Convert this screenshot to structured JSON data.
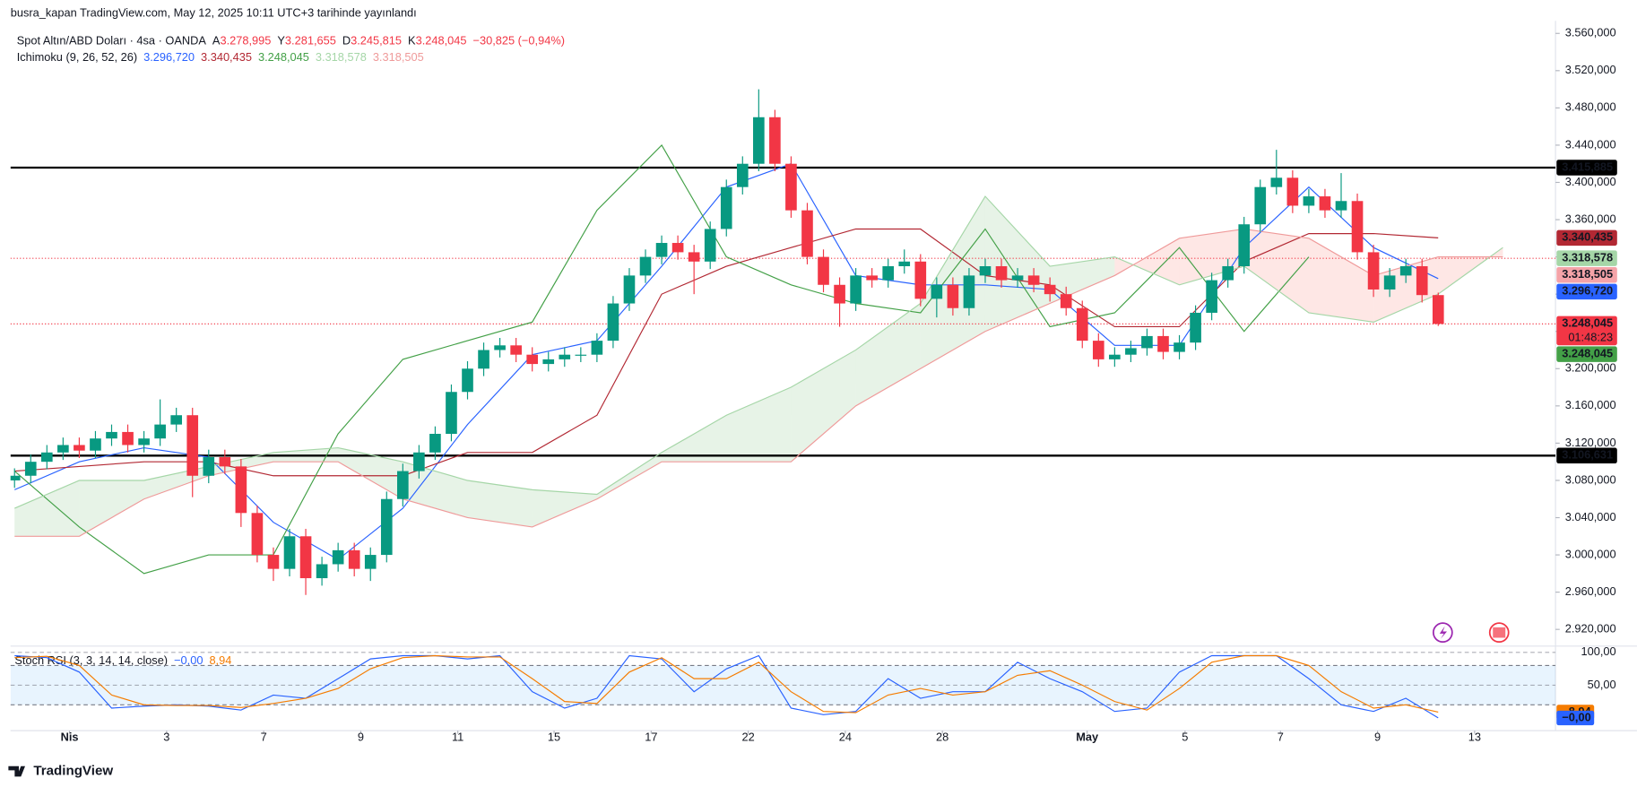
{
  "header": {
    "publisher": "busra_kapan TradingView.com, May 12, 2025 10:11 UTC+3 tarihinde yayınlandı",
    "footer": "TradingView"
  },
  "chart_data": {
    "type": "candlestick",
    "symbol": "Spot Altın/ABD Doları · 4sa · OANDA",
    "ohlc_legend": [
      {
        "key": "A",
        "value": "3.278,995"
      },
      {
        "key": "Y",
        "value": "3.281,655"
      },
      {
        "key": "D",
        "value": "3.245,815"
      },
      {
        "key": "K",
        "value": "3.248,045"
      }
    ],
    "change": "−30,825 (−0,94%)",
    "up_color": "#089981",
    "down_color": "#f23645",
    "x": [
      0,
      2,
      4,
      6,
      8,
      10,
      12,
      14,
      16,
      18,
      20,
      22,
      24,
      26,
      28,
      30,
      32,
      34,
      36,
      38,
      40,
      42,
      44,
      46,
      48,
      50,
      52,
      54,
      56,
      58,
      60,
      62,
      64,
      66,
      68,
      70,
      72,
      74,
      76,
      78,
      80,
      82,
      84,
      86,
      88,
      90,
      92,
      94,
      96,
      98,
      100,
      102,
      104,
      106,
      108,
      110,
      112,
      114,
      116,
      118,
      120,
      122,
      124,
      126,
      128,
      130,
      132,
      134,
      136,
      138,
      140,
      142,
      144,
      146,
      148,
      150,
      152,
      154,
      156,
      158,
      160,
      162,
      164,
      166,
      168,
      170,
      172,
      174,
      176
    ],
    "open": [
      3080,
      3085,
      3100,
      3110,
      3118,
      3112,
      3125,
      3132,
      3118,
      3125,
      3140,
      3150,
      3085,
      3105,
      3095,
      3045,
      3000,
      2985,
      3020,
      2975,
      2990,
      3005,
      2985,
      3000,
      3060,
      3090,
      3110,
      3130,
      3175,
      3200,
      3220,
      3225,
      3215,
      3205,
      3210,
      3215,
      3215,
      3230,
      3270,
      3300,
      3320,
      3335,
      3325,
      3315,
      3350,
      3395,
      3420,
      3470,
      3420,
      3370,
      3320,
      3290,
      3270,
      3300,
      3295,
      3310,
      3315,
      3275,
      3290,
      3265,
      3300,
      3310,
      3295,
      3300,
      3290,
      3280,
      3265,
      3230,
      3210,
      3215,
      3222,
      3235,
      3218,
      3228,
      3260,
      3295,
      3310,
      3355,
      3395,
      3405,
      3375,
      3385,
      3370,
      3380,
      3325,
      3285,
      3300,
      3310,
      3278.995
    ],
    "high": [
      3093,
      3108,
      3118,
      3126,
      3126,
      3133,
      3140,
      3140,
      3133,
      3167,
      3158,
      3158,
      3113,
      3113,
      3103,
      3053,
      3008,
      3028,
      3028,
      2998,
      3013,
      3013,
      3008,
      3068,
      3098,
      3118,
      3138,
      3183,
      3208,
      3228,
      3233,
      3233,
      3223,
      3218,
      3223,
      3223,
      3238,
      3278,
      3308,
      3328,
      3343,
      3343,
      3333,
      3358,
      3403,
      3428,
      3500,
      3478,
      3428,
      3378,
      3328,
      3298,
      3308,
      3308,
      3318,
      3328,
      3323,
      3298,
      3298,
      3308,
      3318,
      3318,
      3308,
      3308,
      3298,
      3288,
      3273,
      3238,
      3223,
      3230,
      3243,
      3243,
      3236,
      3268,
      3303,
      3318,
      3363,
      3403,
      3435,
      3413,
      3393,
      3393,
      3410,
      3388,
      3333,
      3308,
      3318,
      3318,
      3281.655
    ],
    "low": [
      3072,
      3077,
      3092,
      3102,
      3104,
      3104,
      3117,
      3110,
      3110,
      3117,
      3132,
      3062,
      3077,
      3087,
      3030,
      2992,
      2972,
      2977,
      2957,
      2967,
      2982,
      2977,
      2972,
      2992,
      3052,
      3082,
      3102,
      3122,
      3167,
      3192,
      3212,
      3207,
      3197,
      3197,
      3202,
      3207,
      3207,
      3222,
      3262,
      3292,
      3312,
      3317,
      3280,
      3307,
      3342,
      3387,
      3412,
      3412,
      3362,
      3312,
      3282,
      3245,
      3262,
      3287,
      3287,
      3302,
      3267,
      3255,
      3257,
      3257,
      3292,
      3287,
      3287,
      3282,
      3272,
      3257,
      3222,
      3202,
      3202,
      3207,
      3214,
      3210,
      3210,
      3220,
      3252,
      3287,
      3302,
      3347,
      3387,
      3367,
      3367,
      3362,
      3362,
      3317,
      3277,
      3277,
      3292,
      3271,
      3245.815
    ],
    "close": [
      3085,
      3100,
      3110,
      3118,
      3112,
      3125,
      3132,
      3118,
      3125,
      3140,
      3150,
      3085,
      3105,
      3095,
      3045,
      3000,
      2985,
      3020,
      2975,
      2990,
      3005,
      2985,
      3000,
      3060,
      3090,
      3110,
      3130,
      3175,
      3200,
      3220,
      3225,
      3215,
      3205,
      3210,
      3215,
      3215,
      3230,
      3270,
      3300,
      3320,
      3335,
      3325,
      3315,
      3350,
      3395,
      3420,
      3470,
      3420,
      3370,
      3320,
      3290,
      3270,
      3300,
      3295,
      3310,
      3315,
      3275,
      3290,
      3265,
      3300,
      3310,
      3295,
      3300,
      3290,
      3280,
      3265,
      3230,
      3210,
      3215,
      3222,
      3235,
      3218,
      3228,
      3260,
      3295,
      3310,
      3355,
      3395,
      3405,
      3375,
      3385,
      3370,
      3380,
      3325,
      3285,
      3300,
      3310,
      3279,
      3248.045
    ],
    "xlim": [
      -0.5,
      190.5
    ],
    "xticks": [
      {
        "value": 6.8,
        "label": "Nis"
      },
      {
        "value": 18.8,
        "label": "3"
      },
      {
        "value": 30.8,
        "label": "7"
      },
      {
        "value": 42.8,
        "label": "9"
      },
      {
        "value": 54.8,
        "label": "11"
      },
      {
        "value": 66.7,
        "label": "15"
      },
      {
        "value": 78.7,
        "label": "17"
      },
      {
        "value": 90.7,
        "label": "22"
      },
      {
        "value": 102.7,
        "label": "24"
      },
      {
        "value": 114.7,
        "label": "28"
      },
      {
        "value": 132.6,
        "label": "May"
      },
      {
        "value": 144.7,
        "label": "5"
      },
      {
        "value": 156.5,
        "label": "7"
      },
      {
        "value": 168.5,
        "label": "9"
      },
      {
        "value": 180.5,
        "label": "13"
      }
    ],
    "ylim": [
      2903.2,
      3573.45
    ],
    "grid": false,
    "yticks": [
      {
        "value": 3560,
        "label": "3.560,000"
      },
      {
        "value": 3520,
        "label": "3.520,000"
      },
      {
        "value": 3480,
        "label": "3.480,000"
      },
      {
        "value": 3440,
        "label": "3.440,000"
      },
      {
        "value": 3400,
        "label": "3.400,000"
      },
      {
        "value": 3360,
        "label": "3.360,000"
      },
      {
        "value": 3320,
        "label": "3.320,000"
      },
      {
        "value": 3280,
        "label": "3.280,000"
      },
      {
        "value": 3240,
        "label": "3.240,000"
      },
      {
        "value": 3200,
        "label": "3.200,000"
      },
      {
        "value": 3160,
        "label": "3.160,000"
      },
      {
        "value": 3120,
        "label": "3.120,000"
      },
      {
        "value": 3080,
        "label": "3.080,000"
      },
      {
        "value": 3040,
        "label": "3.040,000"
      },
      {
        "value": 3000,
        "label": "3.000,000"
      },
      {
        "value": 2960,
        "label": "2.960,000"
      },
      {
        "value": 2920,
        "label": "2.920,000"
      }
    ],
    "hlines": [
      {
        "value": 3415.885,
        "color": "#000000",
        "style": "solid"
      },
      {
        "value": 3106.631,
        "color": "#000000",
        "style": "solid"
      },
      {
        "value": 3318.505,
        "color": "#f23645",
        "style": "dotted"
      },
      {
        "value": 3248.045,
        "color": "#f23645",
        "style": "dotted"
      }
    ],
    "ichimoku": {
      "title": "Ichimoku (9, 26, 52, 26)",
      "x": [
        0,
        8,
        16,
        24,
        32,
        40,
        48,
        56,
        64,
        72,
        80,
        88,
        96,
        104,
        112,
        120,
        128,
        136,
        144,
        152,
        160,
        168,
        176,
        184
      ],
      "cloud_up_color": "rgba(67,160,71,0.13)",
      "cloud_down_color": "rgba(244,67,54,0.13)",
      "series": [
        {
          "role": "tenkan",
          "legend_value": "3.296,720",
          "color": "#2962ff",
          "values": [
            3070,
            3100,
            3115,
            3105,
            3035,
            2995,
            3050,
            3140,
            3215,
            3230,
            3310,
            3395,
            3420,
            3300,
            3290,
            3290,
            3285,
            3225,
            3225,
            3330,
            3395,
            3330,
            3296.72,
            null
          ]
        },
        {
          "role": "kijun",
          "legend_value": "3.340,435",
          "color": "#b22833",
          "values": [
            3090,
            3095,
            3100,
            3100,
            3085,
            3085,
            3085,
            3110,
            3110,
            3150,
            3280,
            3310,
            3330,
            3350,
            3350,
            3300,
            3290,
            3245,
            3245,
            3315,
            3345,
            3345,
            3340.435,
            null
          ]
        },
        {
          "role": "chikou",
          "legend_value": "3.248,045",
          "color": "#43a047",
          "values": [
            3090,
            3030,
            2980,
            3000,
            3000,
            3130,
            3210,
            3230,
            3250,
            3370,
            3440,
            3320,
            3290,
            3270,
            3260,
            3350,
            3245,
            3260,
            3330,
            3240,
            3320,
            null,
            null,
            null
          ]
        },
        {
          "role": "span_a",
          "legend_value": "3.318,578",
          "color": "#a5d6a7",
          "values": [
            3050,
            3080,
            3080,
            3095,
            3110,
            3115,
            3100,
            3080,
            3070,
            3065,
            3110,
            3150,
            3180,
            3220,
            3270,
            3385,
            3310,
            3320,
            3290,
            3310,
            3260,
            3250,
            3280,
            3330
          ]
        },
        {
          "role": "span_b",
          "legend_value": "3.318,505",
          "color": "#ef9a9a",
          "values": [
            3020,
            3020,
            3060,
            3085,
            3100,
            3100,
            3060,
            3040,
            3030,
            3060,
            3100,
            3100,
            3100,
            3160,
            3200,
            3240,
            3270,
            3300,
            3340,
            3350,
            3340,
            3300,
            3320,
            3320
          ]
        }
      ]
    },
    "price_tags": [
      {
        "value": 3415.885,
        "label": "3.415,885",
        "color": "#000000",
        "text_color": "#ffffff"
      },
      {
        "value": 3340.435,
        "label": "3.340,435",
        "color": "#b22833",
        "text_color": "#ffffff"
      },
      {
        "value": 3318.578,
        "label": "3.318,578",
        "color": "#a5d6a7",
        "text_color": "#131722"
      },
      {
        "value": 3318.505,
        "label": "3.318,505",
        "color": "#f5a3a8",
        "text_color": "#131722"
      },
      {
        "value": 3296.72,
        "label": "3.296,720",
        "color": "#2962ff",
        "text_color": "#ffffff"
      },
      {
        "value": 3248.045,
        "label": "3.248,045",
        "countdown": "01:48:23",
        "color": "#f23645",
        "text_color": "#ffffff"
      },
      {
        "value": 3248.045,
        "label": "3.248,045",
        "color": "#43a047",
        "text_color": "#ffffff"
      },
      {
        "value": 3106.631,
        "label": "3.106,631",
        "color": "#000000",
        "text_color": "#ffffff"
      }
    ],
    "stoch": {
      "title": "Stoch RSI (3, 3, 14, 14, close)",
      "ylim": [
        -19.35,
        106.45
      ],
      "yticks": [
        {
          "value": 100,
          "label": "100,00"
        },
        {
          "value": 50,
          "label": "50,00"
        }
      ],
      "band": [
        20,
        80
      ],
      "x": [
        0,
        4,
        8,
        12,
        16,
        20,
        24,
        28,
        32,
        36,
        40,
        44,
        48,
        52,
        56,
        60,
        64,
        68,
        72,
        76,
        80,
        84,
        88,
        92,
        96,
        100,
        104,
        108,
        112,
        116,
        120,
        124,
        128,
        132,
        136,
        140,
        144,
        148,
        152,
        156,
        160,
        164,
        168,
        172,
        176
      ],
      "series": [
        {
          "legend_value": "−0,00",
          "color": "#2962ff",
          "values": [
            95,
            92,
            70,
            15,
            18,
            20,
            18,
            12,
            35,
            30,
            60,
            90,
            95,
            95,
            90,
            95,
            40,
            15,
            30,
            95,
            90,
            40,
            75,
            95,
            15,
            5,
            10,
            60,
            30,
            40,
            40,
            85,
            60,
            40,
            10,
            15,
            70,
            95,
            95,
            95,
            60,
            20,
            10,
            30,
            0
          ]
        },
        {
          "legend_value": "8,94",
          "color": "#f57c00",
          "values": [
            92,
            94,
            80,
            35,
            20,
            19,
            19,
            16,
            22,
            30,
            45,
            75,
            92,
            95,
            93,
            93,
            60,
            25,
            22,
            70,
            92,
            60,
            60,
            85,
            40,
            10,
            8,
            35,
            45,
            35,
            40,
            65,
            72,
            50,
            25,
            12,
            45,
            85,
            95,
            95,
            80,
            40,
            15,
            20,
            8.94
          ]
        }
      ],
      "tags": [
        {
          "value": 8.94,
          "label": "8,94",
          "color": "#f57c00"
        },
        {
          "value": 0,
          "label": "−0,00",
          "color": "#2962ff"
        }
      ]
    }
  }
}
